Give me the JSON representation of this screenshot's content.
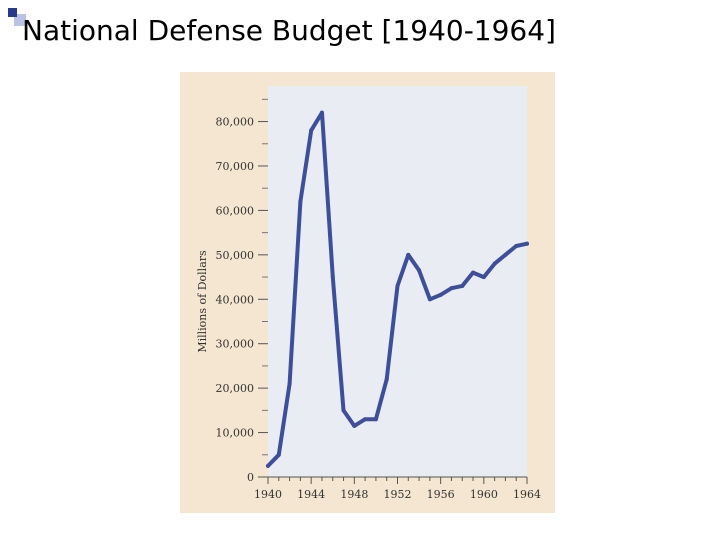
{
  "slide": {
    "title": "National Defense Budget [1940-1964]"
  },
  "colors": {
    "panel_bg": "#f4e6d0",
    "plot_bg": "#e9ecf2",
    "line": "#3d4f9a",
    "bullet_dark": "#2a3a8a",
    "bullet_light": "#b9c3e6"
  },
  "chart_data": {
    "type": "line",
    "title": "",
    "xlabel": "",
    "ylabel": "Millions of Dollars",
    "xlim": [
      1940,
      1964
    ],
    "ylim": [
      0,
      88000
    ],
    "xticks": [
      1940,
      1944,
      1948,
      1952,
      1956,
      1960,
      1964
    ],
    "xtick_labels": [
      "1940",
      "1944",
      "1948",
      "1952",
      "1956",
      "1960",
      "1964"
    ],
    "yticks": [
      0,
      10000,
      20000,
      30000,
      40000,
      50000,
      60000,
      70000,
      80000
    ],
    "ytick_labels": [
      "0",
      "10,000",
      "20,000",
      "30,000",
      "40,000",
      "50,000",
      "60,000",
      "70,000",
      "80,000"
    ],
    "grid": false,
    "legend": "none",
    "series": [
      {
        "x": [
          1940,
          1941,
          1942,
          1943,
          1944,
          1945,
          1946,
          1947,
          1948,
          1949,
          1950,
          1951,
          1952,
          1953,
          1954,
          1955,
          1956,
          1957,
          1958,
          1959,
          1960,
          1961,
          1962,
          1963,
          1964
        ],
        "values": [
          2500,
          5000,
          21000,
          62000,
          78000,
          82000,
          45000,
          15000,
          11500,
          13000,
          13000,
          22000,
          43000,
          50000,
          46500,
          40000,
          41000,
          42500,
          43000,
          46000,
          45000,
          48000,
          50000,
          52000,
          52500
        ]
      }
    ]
  }
}
